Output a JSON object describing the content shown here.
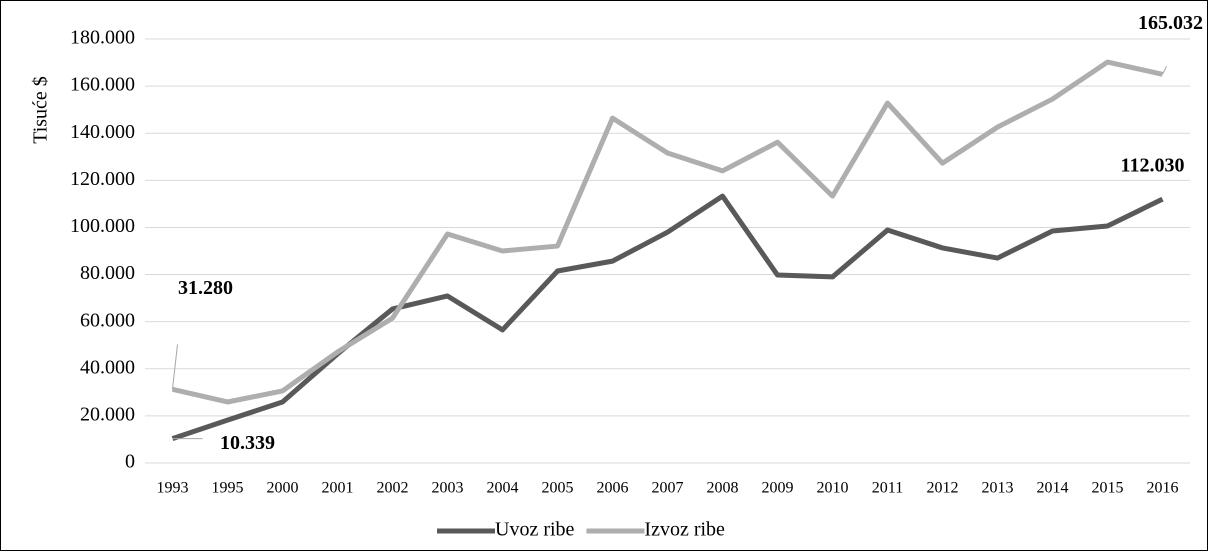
{
  "chart_data": {
    "type": "line",
    "y_label": "Tisuće $",
    "categories": [
      "1993",
      "1995",
      "2000",
      "2001",
      "2002",
      "2003",
      "2004",
      "2005",
      "2006",
      "2007",
      "2008",
      "2009",
      "2010",
      "2011",
      "2012",
      "2013",
      "2014",
      "2015",
      "2016"
    ],
    "series": [
      {
        "name": "Uvoz ribe",
        "color": "#595959",
        "values": [
          10339,
          18200,
          25900,
          46300,
          65400,
          70900,
          56500,
          81500,
          85700,
          98000,
          113300,
          79800,
          79000,
          98900,
          91300,
          87000,
          98500,
          100600,
          112030
        ],
        "value_labels": [
          "10.339",
          null,
          null,
          null,
          null,
          null,
          null,
          null,
          null,
          null,
          null,
          null,
          null,
          null,
          null,
          null,
          null,
          null,
          "112.030"
        ]
      },
      {
        "name": "Izvoz ribe",
        "color": "#aeaeae",
        "values": [
          31280,
          25900,
          30600,
          47100,
          61500,
          97200,
          90000,
          92100,
          146400,
          131600,
          124000,
          136200,
          113300,
          152800,
          127300,
          142600,
          154500,
          170200,
          165032
        ],
        "value_labels": [
          "31.280",
          null,
          null,
          null,
          null,
          null,
          null,
          null,
          null,
          null,
          null,
          null,
          null,
          null,
          null,
          null,
          null,
          null,
          "165.032"
        ]
      }
    ],
    "ylim": [
      0,
      180000
    ],
    "yticks": [
      0,
      {
        "value": 20000,
        "label": "20.000"
      },
      {
        "value": 40000,
        "label": "40.000"
      },
      {
        "value": 60000,
        "label": "60.000"
      },
      {
        "value": 80000,
        "label": "80.000"
      },
      {
        "value": 100000,
        "label": "100.000"
      },
      {
        "value": 120000,
        "label": "120.000"
      },
      {
        "value": 140000,
        "label": "140.000"
      },
      {
        "value": 160000,
        "label": "160.000"
      },
      {
        "value": 180000,
        "label": "180.000"
      }
    ],
    "grid": true,
    "legend": "bottom"
  }
}
